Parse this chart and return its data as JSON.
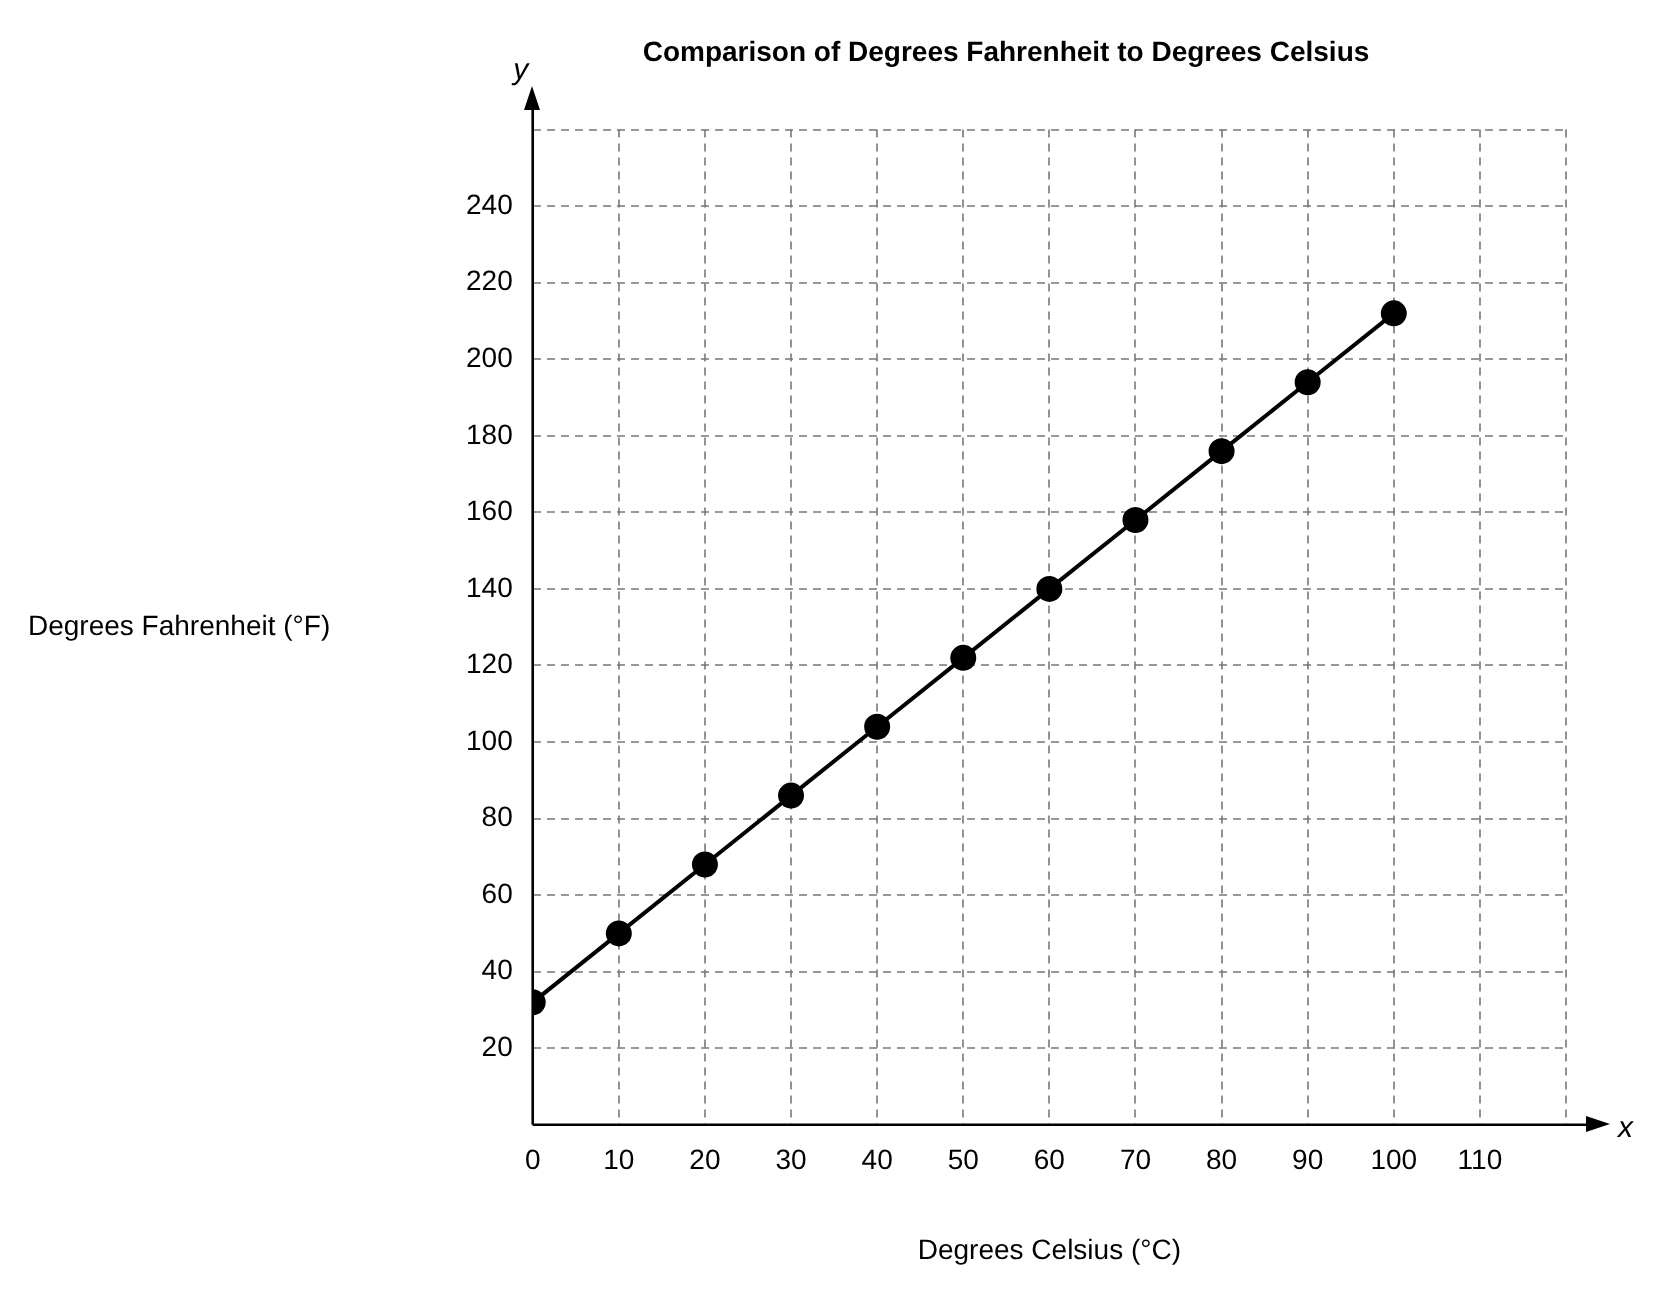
{
  "chart_data": {
    "type": "line",
    "title": "Comparison of Degrees Fahrenheit to Degrees Celsius",
    "xlabel": "Degrees Celsius (°C)",
    "ylabel": "Degrees Fahrenheit (°F)",
    "annotations": [
      "y",
      "x"
    ],
    "x": [
      0,
      10,
      20,
      30,
      40,
      50,
      60,
      70,
      80,
      90,
      100
    ],
    "series": [
      {
        "color": "#000000",
        "values": [
          32,
          50,
          68,
          86,
          104,
          122,
          140,
          158,
          176,
          194,
          212
        ]
      }
    ],
    "xlim": [
      0,
      120
    ],
    "xticks": [
      0,
      10,
      20,
      30,
      40,
      50,
      60,
      70,
      80,
      90,
      100,
      110,
      {
        "value": 120,
        "label": null
      }
    ],
    "ylim": [
      0,
      260
    ],
    "yticks": [
      {
        "value": 0,
        "label": null
      },
      20,
      40,
      60,
      80,
      100,
      120,
      140,
      160,
      180,
      200,
      220,
      240,
      {
        "value": 260,
        "label": null
      }
    ],
    "grid": true,
    "legend": false,
    "marker": "circle",
    "line_style": "solid"
  }
}
